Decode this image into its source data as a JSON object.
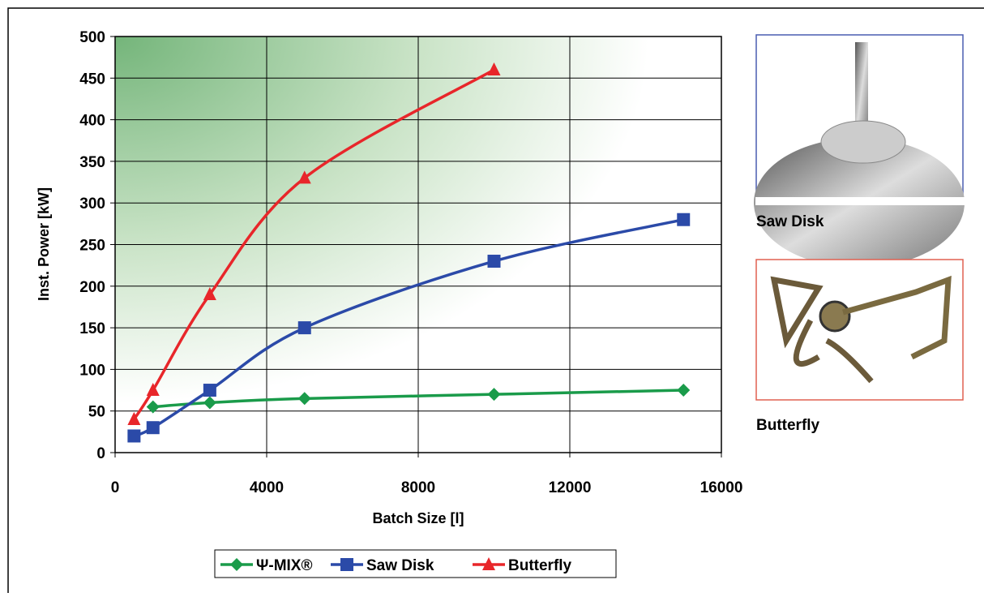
{
  "chart_data": {
    "type": "line",
    "xlabel": "Batch Size [l]",
    "ylabel": "Inst. Power [kW]",
    "xlim": [
      0,
      16000
    ],
    "xticks": [
      0,
      4000,
      8000,
      12000,
      16000
    ],
    "ylim": [
      0,
      500
    ],
    "yticks": [
      0,
      50,
      100,
      150,
      200,
      250,
      300,
      350,
      400,
      450,
      500
    ],
    "grid": true,
    "legend": "bottom",
    "series": [
      {
        "name": "Ψ-MIX®",
        "color": "#1a9b4a",
        "marker": "diamond",
        "x": [
          1000,
          2500,
          5000,
          10000,
          15000
        ],
        "values": [
          55,
          60,
          65,
          70,
          75
        ]
      },
      {
        "name": "Saw Disk",
        "color": "#2b4aa8",
        "marker": "square",
        "x": [
          500,
          1000,
          2500,
          5000,
          10000,
          15000
        ],
        "values": [
          20,
          30,
          75,
          150,
          230,
          280
        ]
      },
      {
        "name": "Butterfly",
        "color": "#e8262a",
        "marker": "triangle",
        "x": [
          500,
          1000,
          2500,
          5000,
          10000
        ],
        "values": [
          40,
          75,
          190,
          330,
          460
        ]
      }
    ]
  },
  "side_panels": [
    {
      "label": "Saw Disk"
    },
    {
      "label": "Butterfly"
    }
  ]
}
